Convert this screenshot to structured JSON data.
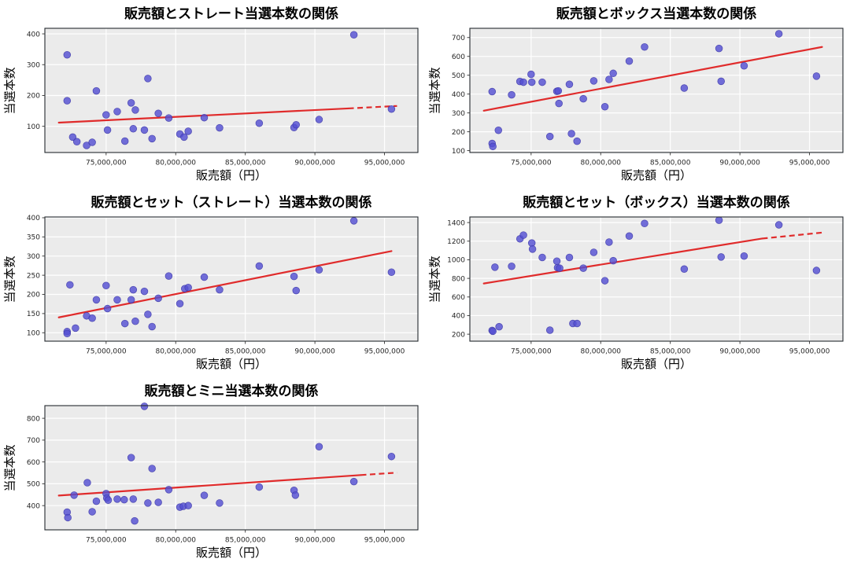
{
  "figure_title": "",
  "style": {
    "figure_bg": "#ffffff",
    "plot_bg": "#ebebeb",
    "grid_color": "#ffffff",
    "spine_color": "#24292e",
    "tick_color": "#333333",
    "point_fill": "#544fd2",
    "point_edge": "#3d38a8",
    "trend_color": "#e02b2b"
  },
  "chart_data": {
    "type": "scatter",
    "x_axis": {
      "label": "販売額（円）",
      "x_unit": "million_yen",
      "min": 70.6,
      "max": 97.4,
      "ticks": [
        75,
        80,
        85,
        90,
        95
      ],
      "tick_labels": [
        "75,000,000",
        "80,000,000",
        "85,000,000",
        "90,000,000",
        "95,000,000"
      ]
    },
    "charts": [
      {
        "title": "販売額とストレート当選本数の関係",
        "ylabel": "当選本数",
        "y_min": 15,
        "y_max": 418,
        "y_ticks": [
          100,
          200,
          300,
          400
        ],
        "points": [
          [
            72.2,
            332
          ],
          [
            72.2,
            183
          ],
          [
            72.6,
            65
          ],
          [
            72.9,
            50
          ],
          [
            73.6,
            38
          ],
          [
            74.0,
            48
          ],
          [
            74.3,
            215
          ],
          [
            75.0,
            137
          ],
          [
            75.1,
            88
          ],
          [
            75.8,
            148
          ],
          [
            76.35,
            52
          ],
          [
            76.8,
            176
          ],
          [
            76.95,
            92
          ],
          [
            77.1,
            153
          ],
          [
            77.75,
            88
          ],
          [
            78.0,
            255
          ],
          [
            78.3,
            60
          ],
          [
            78.75,
            142
          ],
          [
            79.5,
            127
          ],
          [
            80.3,
            75
          ],
          [
            80.6,
            65
          ],
          [
            80.9,
            84
          ],
          [
            82.05,
            128
          ],
          [
            83.15,
            95
          ],
          [
            86.0,
            110
          ],
          [
            88.5,
            96
          ],
          [
            88.65,
            105
          ],
          [
            90.3,
            122
          ],
          [
            92.8,
            397
          ],
          [
            95.5,
            156
          ]
        ],
        "trend_solid": [
          [
            71.6,
            112
          ],
          [
            92.4,
            158
          ]
        ],
        "trend_dashed": [
          [
            92.4,
            158
          ],
          [
            95.9,
            166
          ]
        ]
      },
      {
        "title": "販売額とボックス当選本数の関係",
        "ylabel": "当選本数",
        "y_min": 90,
        "y_max": 749,
        "y_ticks": [
          100,
          200,
          300,
          400,
          500,
          600,
          700
        ],
        "points": [
          [
            72.2,
            413
          ],
          [
            72.2,
            138
          ],
          [
            72.25,
            122
          ],
          [
            72.65,
            208
          ],
          [
            73.6,
            396
          ],
          [
            74.2,
            467
          ],
          [
            74.45,
            463
          ],
          [
            75.0,
            505
          ],
          [
            75.05,
            463
          ],
          [
            75.8,
            463
          ],
          [
            76.35,
            175
          ],
          [
            76.85,
            415
          ],
          [
            76.95,
            417
          ],
          [
            77.0,
            350
          ],
          [
            77.75,
            452
          ],
          [
            77.9,
            190
          ],
          [
            78.3,
            150
          ],
          [
            78.75,
            375
          ],
          [
            79.5,
            470
          ],
          [
            80.3,
            333
          ],
          [
            80.6,
            478
          ],
          [
            80.9,
            510
          ],
          [
            82.05,
            575
          ],
          [
            83.15,
            650
          ],
          [
            86.0,
            432
          ],
          [
            88.5,
            642
          ],
          [
            88.65,
            468
          ],
          [
            90.3,
            550
          ],
          [
            92.8,
            720
          ],
          [
            95.5,
            495
          ]
        ],
        "trend_solid": [
          [
            71.6,
            312
          ],
          [
            95.9,
            650
          ]
        ],
        "trend_dashed": null
      },
      {
        "title": "販売額とセット（ストレート）当選本数の関係",
        "ylabel": "当選本数",
        "y_min": 78,
        "y_max": 402,
        "y_ticks": [
          100,
          150,
          200,
          250,
          300,
          350,
          400
        ],
        "points": [
          [
            72.2,
            103
          ],
          [
            72.2,
            98
          ],
          [
            72.4,
            225
          ],
          [
            72.8,
            112
          ],
          [
            73.6,
            144
          ],
          [
            74.0,
            138
          ],
          [
            74.3,
            186
          ],
          [
            75.0,
            223
          ],
          [
            75.1,
            163
          ],
          [
            75.8,
            186
          ],
          [
            76.35,
            124
          ],
          [
            76.8,
            186
          ],
          [
            76.95,
            212
          ],
          [
            77.1,
            130
          ],
          [
            77.75,
            208
          ],
          [
            78.0,
            148
          ],
          [
            78.3,
            116
          ],
          [
            78.75,
            190
          ],
          [
            79.5,
            248
          ],
          [
            80.3,
            176
          ],
          [
            80.65,
            215
          ],
          [
            80.9,
            218
          ],
          [
            82.05,
            245
          ],
          [
            83.15,
            212
          ],
          [
            86.0,
            274
          ],
          [
            88.5,
            247
          ],
          [
            88.65,
            210
          ],
          [
            90.3,
            264
          ],
          [
            92.8,
            392
          ],
          [
            95.5,
            258
          ]
        ],
        "trend_solid": [
          [
            71.6,
            140
          ],
          [
            95.5,
            313
          ]
        ],
        "trend_dashed": null
      },
      {
        "title": "販売額とセット（ボックス）当選本数の関係",
        "ylabel": "当選本数",
        "y_min": 125,
        "y_max": 1460,
        "y_ticks": [
          200,
          400,
          600,
          800,
          1000,
          1200,
          1400
        ],
        "points": [
          [
            72.2,
            240
          ],
          [
            72.25,
            232
          ],
          [
            72.4,
            920
          ],
          [
            72.7,
            280
          ],
          [
            73.6,
            930
          ],
          [
            74.2,
            1225
          ],
          [
            74.45,
            1265
          ],
          [
            75.05,
            1180
          ],
          [
            75.1,
            1115
          ],
          [
            75.8,
            1025
          ],
          [
            76.35,
            243
          ],
          [
            76.85,
            985
          ],
          [
            76.9,
            915
          ],
          [
            77.05,
            910
          ],
          [
            77.75,
            1025
          ],
          [
            78.0,
            315
          ],
          [
            78.3,
            315
          ],
          [
            78.75,
            910
          ],
          [
            79.5,
            1080
          ],
          [
            80.3,
            775
          ],
          [
            80.6,
            1190
          ],
          [
            80.9,
            990
          ],
          [
            82.05,
            1255
          ],
          [
            83.15,
            1390
          ],
          [
            86.0,
            900
          ],
          [
            88.5,
            1425
          ],
          [
            88.65,
            1030
          ],
          [
            90.3,
            1040
          ],
          [
            92.8,
            1375
          ],
          [
            95.5,
            885
          ]
        ],
        "trend_solid": [
          [
            71.6,
            745
          ],
          [
            91.6,
            1228
          ]
        ],
        "trend_dashed": [
          [
            91.6,
            1228
          ],
          [
            95.9,
            1292
          ]
        ]
      },
      {
        "title": "販売額とミニ当選本数の関係",
        "ylabel": "当選本数",
        "y_min": 289,
        "y_max": 858,
        "y_ticks": [
          400,
          500,
          600,
          700,
          800
        ],
        "points": [
          [
            72.2,
            370
          ],
          [
            72.25,
            345
          ],
          [
            72.7,
            448
          ],
          [
            73.65,
            505
          ],
          [
            74.0,
            372
          ],
          [
            74.3,
            420
          ],
          [
            75.0,
            455
          ],
          [
            75.05,
            435
          ],
          [
            75.15,
            425
          ],
          [
            75.8,
            430
          ],
          [
            76.3,
            427
          ],
          [
            76.8,
            620
          ],
          [
            76.95,
            430
          ],
          [
            77.05,
            330
          ],
          [
            77.75,
            855
          ],
          [
            78.0,
            412
          ],
          [
            78.3,
            570
          ],
          [
            78.75,
            415
          ],
          [
            79.5,
            473
          ],
          [
            80.3,
            393
          ],
          [
            80.55,
            397
          ],
          [
            80.9,
            400
          ],
          [
            82.05,
            447
          ],
          [
            83.15,
            412
          ],
          [
            86.0,
            485
          ],
          [
            88.5,
            470
          ],
          [
            88.6,
            448
          ],
          [
            90.3,
            670
          ],
          [
            92.8,
            510
          ],
          [
            95.5,
            625
          ]
        ],
        "trend_solid": [
          [
            71.6,
            446
          ],
          [
            93.3,
            540
          ]
        ],
        "trend_dashed": [
          [
            93.3,
            540
          ],
          [
            95.9,
            551
          ]
        ]
      }
    ]
  }
}
